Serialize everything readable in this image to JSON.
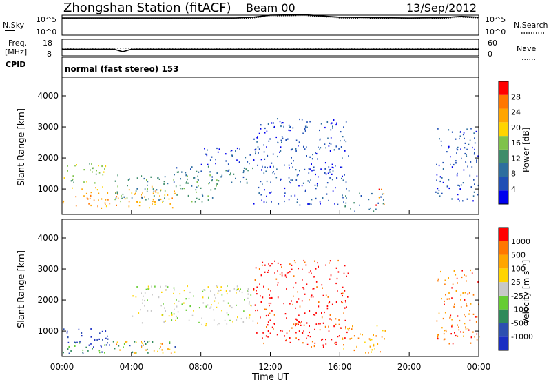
{
  "header": {
    "title": "Zhongshan Station (fitACF)",
    "beam": "Beam 00",
    "date": "13/Sep/2012"
  },
  "nsky_panel": {
    "left_label": "N.Sky",
    "left_ticks": [
      "10^5",
      "10^0"
    ],
    "right_label": "N.Search",
    "right_ticks": [
      "10^5",
      "10^0"
    ]
  },
  "freq_panel": {
    "left_label_1": "Freq.",
    "left_label_2": "[MHz]",
    "left_ticks": [
      "18",
      "8"
    ],
    "right_label": "Nave",
    "right_ticks": [
      "60",
      "0"
    ],
    "cpid_label": "CPID"
  },
  "cpid_text": "normal (fast stereo) 153",
  "colors": {
    "power_scale": [
      "#0000ee",
      "#1f4fb5",
      "#2d6e9e",
      "#3f8c6a",
      "#7fc24a",
      "#ffd400",
      "#ffa500",
      "#ff7700",
      "#ff0000"
    ],
    "velocity_scale": [
      "#1a2ec2",
      "#2d4fb0",
      "#2f8a5a",
      "#66cc33",
      "#c8c8c8",
      "#ffd400",
      "#ffa500",
      "#ff7700",
      "#ff0000"
    ]
  },
  "chart_data": [
    {
      "type": "line",
      "panel": "N.Sky / N.Search",
      "x": [
        "00:00",
        "04:00",
        "08:00",
        "10:00",
        "11:00",
        "12:00",
        "14:00",
        "16:00",
        "18:00",
        "20:00",
        "22:00",
        "23:00",
        "24:00"
      ],
      "series": [
        {
          "name": "N.Sky",
          "values": [
            4.3,
            4.3,
            4.3,
            4.3,
            4.5,
            5.0,
            5.1,
            4.5,
            4.4,
            4.3,
            4.4,
            4.7,
            4.5
          ]
        },
        {
          "name": "N.Search",
          "values": [
            4.1,
            4.1,
            4.1,
            4.1,
            4.3,
            4.8,
            4.9,
            4.3,
            4.2,
            4.1,
            4.2,
            4.5,
            4.3
          ]
        }
      ],
      "ylabel": "N.Sky",
      "ylim": [
        0,
        5
      ]
    },
    {
      "type": "line",
      "panel": "Freq. / Nave",
      "x": [
        "00:00",
        "03:00",
        "03:30",
        "04:00",
        "24:00"
      ],
      "series": [
        {
          "name": "Freq.",
          "values": [
            12,
            12,
            10.5,
            12,
            12
          ]
        },
        {
          "name": "Nave",
          "values": [
            28,
            28,
            28,
            28,
            28
          ]
        }
      ],
      "ylabel": "Freq. [MHz]",
      "ylim": [
        8,
        18
      ]
    },
    {
      "type": "heatmap",
      "panel": "Power",
      "xlabel": "",
      "ylabel": "Slant Range [km]",
      "xlim": [
        0,
        24
      ],
      "ylim": [
        180,
        4600
      ],
      "x_ticks": [
        "00:00",
        "04:00",
        "08:00",
        "12:00",
        "16:00",
        "20:00",
        "00:00"
      ],
      "y_ticks": [
        "1000",
        "2000",
        "3000",
        "4000"
      ],
      "colorbar_label": "Power [dB]",
      "colorbar_ticks": [
        "4",
        "8",
        "12",
        "16",
        "20",
        "24",
        "28"
      ],
      "regions": [
        {
          "t0": 0.0,
          "t1": 6.5,
          "r0": 400,
          "r1": 1100,
          "level": 6
        },
        {
          "t0": 0.0,
          "t1": 2.5,
          "r0": 1200,
          "r1": 1900,
          "level": 4
        },
        {
          "t0": 3.0,
          "t1": 9.0,
          "r0": 600,
          "r1": 1500,
          "level": 3
        },
        {
          "t0": 6.0,
          "t1": 11.0,
          "r0": 1200,
          "r1": 1750,
          "level": 2
        },
        {
          "t0": 8.0,
          "t1": 11.0,
          "r0": 1800,
          "r1": 2400,
          "level": 1
        },
        {
          "t0": 11.0,
          "t1": 16.5,
          "r0": 500,
          "r1": 3300,
          "level": 1
        },
        {
          "t0": 16.0,
          "t1": 18.5,
          "r0": 300,
          "r1": 900,
          "level": 2
        },
        {
          "t0": 18.0,
          "t1": 18.6,
          "r0": 500,
          "r1": 1200,
          "level": 7
        },
        {
          "t0": 21.5,
          "t1": 24.0,
          "r0": 600,
          "r1": 3000,
          "level": 1
        }
      ]
    },
    {
      "type": "heatmap",
      "panel": "Velocity",
      "xlabel": "Time UT",
      "ylabel": "Slant Range [km]",
      "xlim": [
        0,
        24
      ],
      "ylim": [
        180,
        4600
      ],
      "x_ticks": [
        "00:00",
        "04:00",
        "08:00",
        "12:00",
        "16:00",
        "20:00",
        "00:00"
      ],
      "y_ticks": [
        "1000",
        "2000",
        "3000",
        "4000"
      ],
      "colorbar_label": "Velocity [m s⁻¹]",
      "colorbar_ticks": [
        "-1000",
        "-500",
        "-100",
        "-25",
        "25",
        "100",
        "500",
        "1000"
      ],
      "regions": [
        {
          "t0": 0.0,
          "t1": 3.0,
          "r0": 500,
          "r1": 1100,
          "level": 0
        },
        {
          "t0": 0.0,
          "t1": 6.5,
          "r0": 300,
          "r1": 700,
          "level": 2
        },
        {
          "t0": 3.0,
          "t1": 6.5,
          "r0": 300,
          "r1": 700,
          "level": 6
        },
        {
          "t0": 4.0,
          "t1": 11.0,
          "r0": 1200,
          "r1": 2500,
          "level": 4
        },
        {
          "t0": 11.0,
          "t1": 16.5,
          "r0": 500,
          "r1": 3300,
          "level": 8
        },
        {
          "t0": 16.0,
          "t1": 18.6,
          "r0": 300,
          "r1": 1200,
          "level": 6
        },
        {
          "t0": 21.5,
          "t1": 24.0,
          "r0": 600,
          "r1": 3000,
          "level": 7
        }
      ]
    }
  ]
}
